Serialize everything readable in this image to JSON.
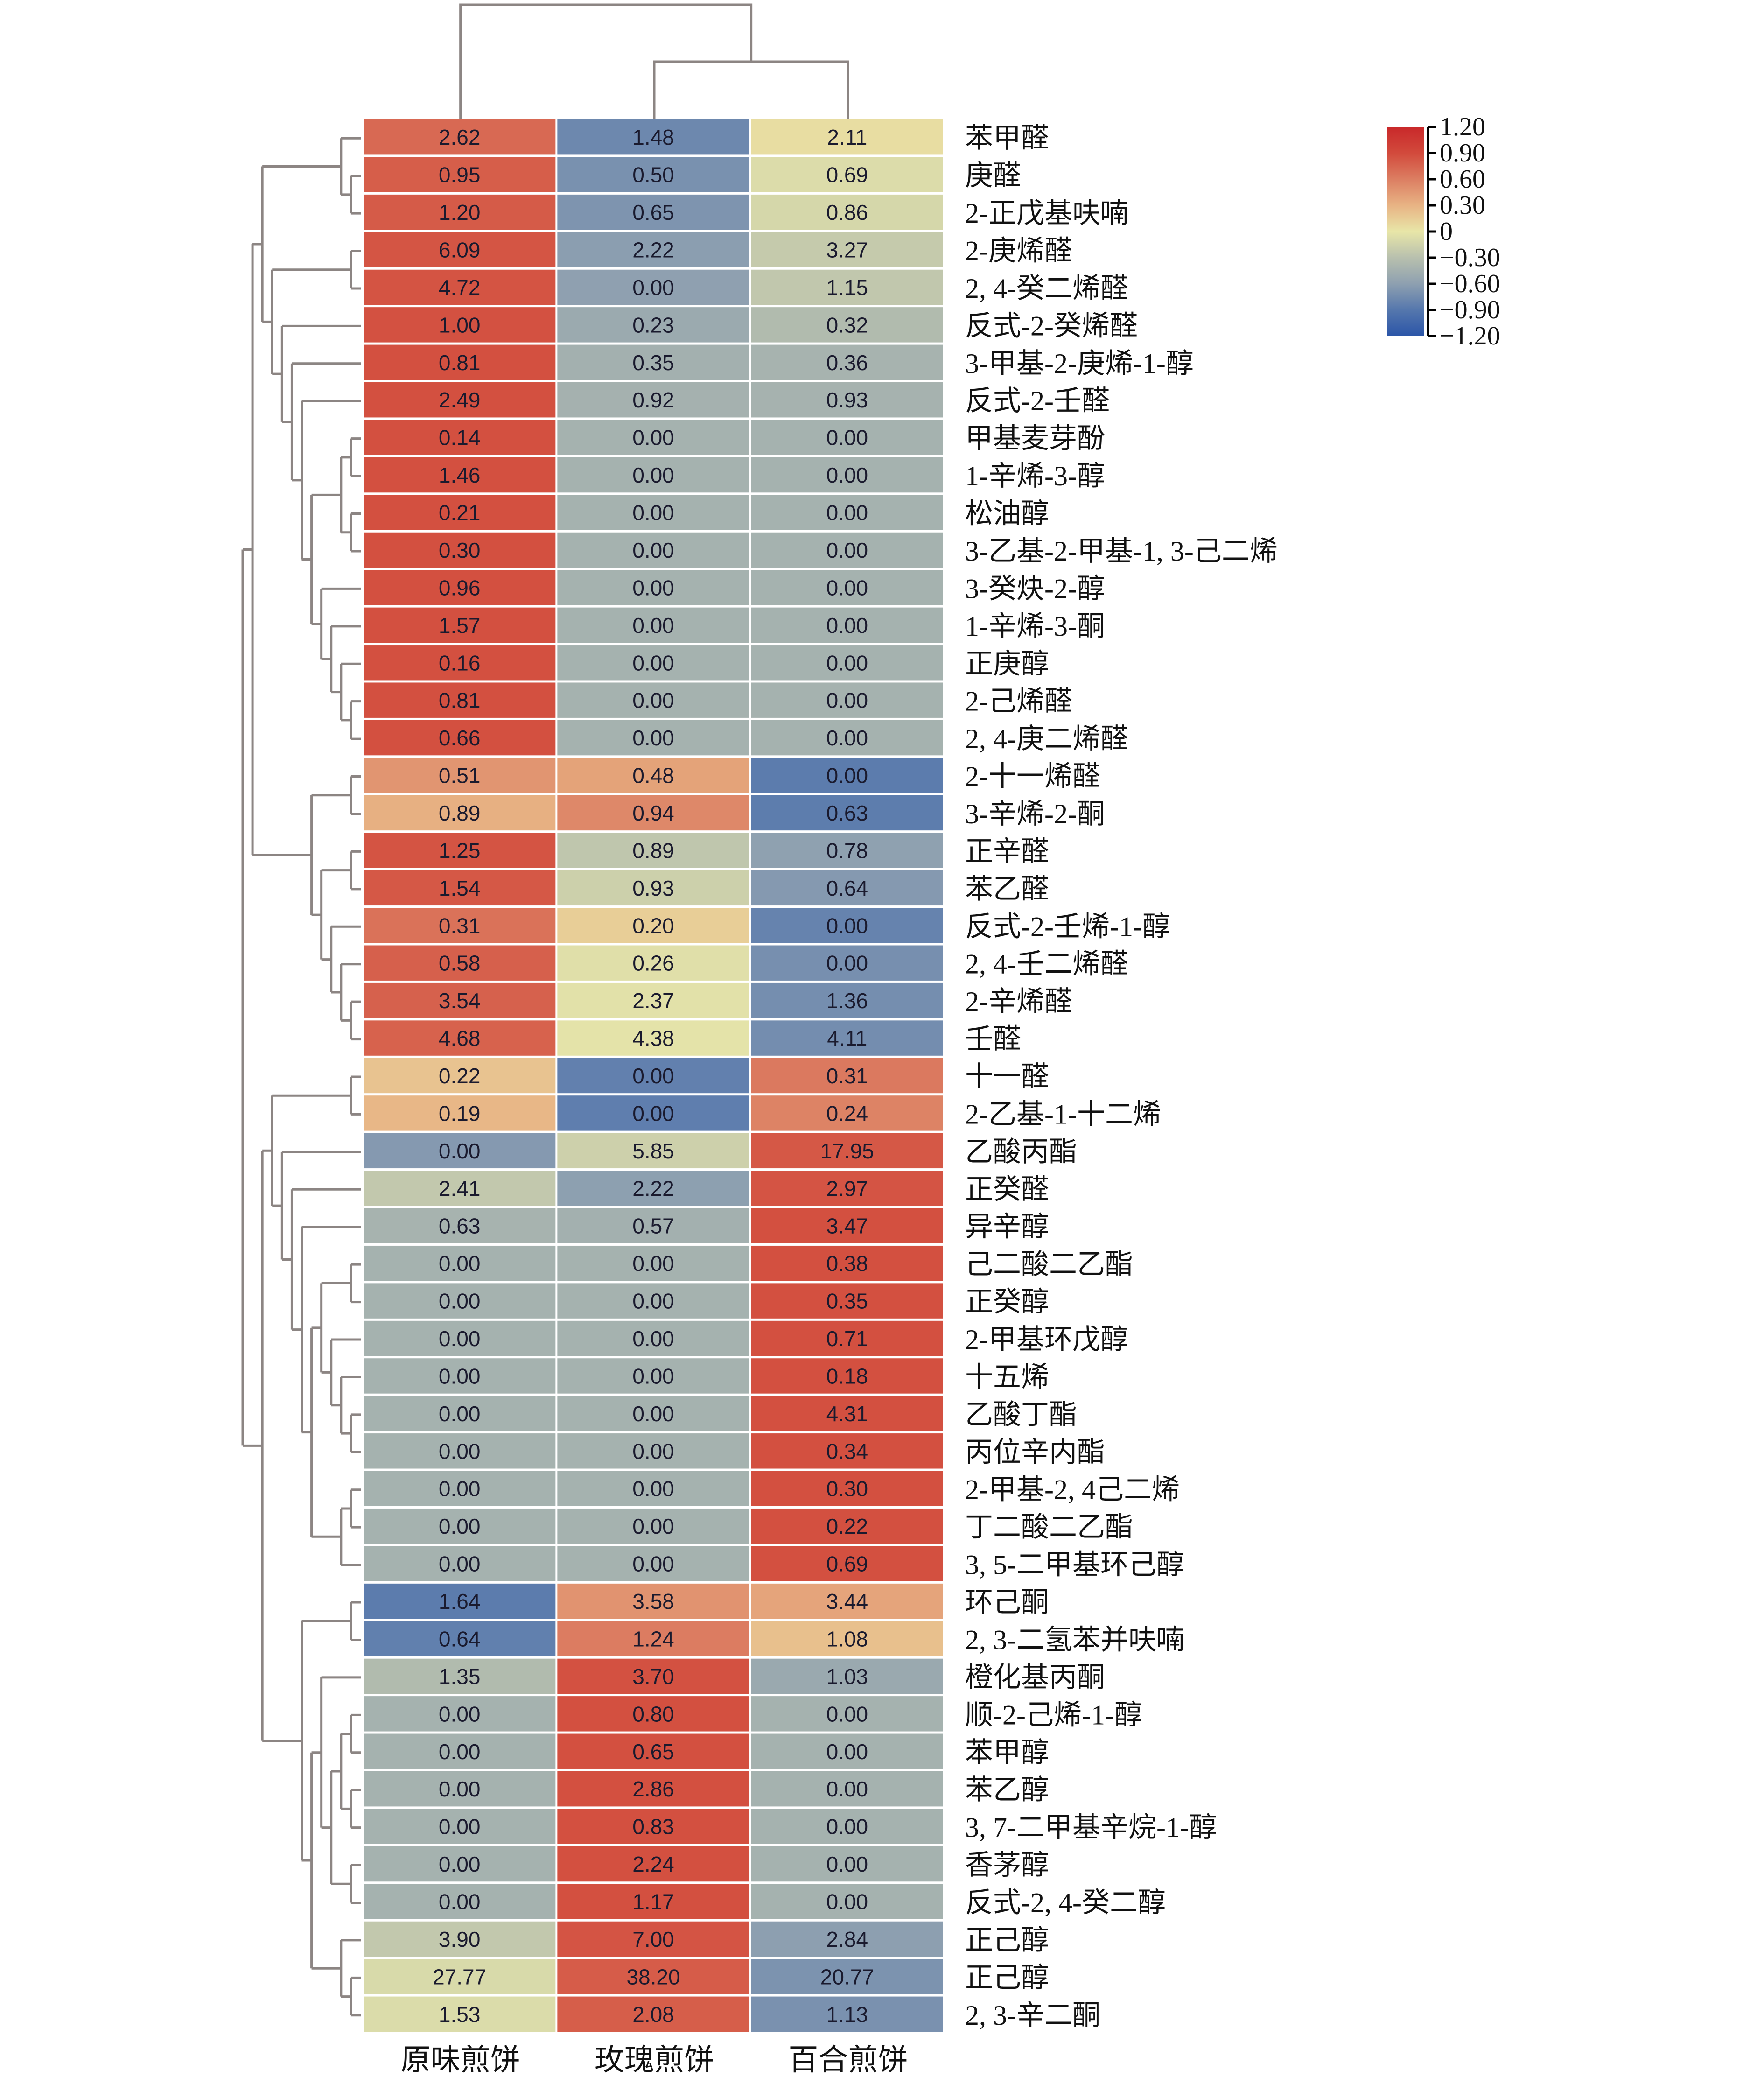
{
  "chart_data": {
    "type": "heatmap",
    "title": "",
    "xlabel": "",
    "ylabel": "",
    "columns": [
      "原味煎饼",
      "玫瑰煎饼",
      "百合煎饼"
    ],
    "rows": [
      {
        "name": "苯甲醛",
        "values": [
          "2.62",
          "1.48",
          "2.11"
        ]
      },
      {
        "name": "庚醛",
        "values": [
          "0.95",
          "0.50",
          "0.69"
        ]
      },
      {
        "name": "2-正戊基呋喃",
        "values": [
          "1.20",
          "0.65",
          "0.86"
        ]
      },
      {
        "name": "2-庚烯醛",
        "values": [
          "6.09",
          "2.22",
          "3.27"
        ]
      },
      {
        "name": "2, 4-癸二烯醛",
        "values": [
          "4.72",
          "0.00",
          "1.15"
        ]
      },
      {
        "name": "反式-2-癸烯醛",
        "values": [
          "1.00",
          "0.23",
          "0.32"
        ]
      },
      {
        "name": "3-甲基-2-庚烯-1-醇",
        "values": [
          "0.81",
          "0.35",
          "0.36"
        ]
      },
      {
        "name": "反式-2-壬醛",
        "values": [
          "2.49",
          "0.92",
          "0.93"
        ]
      },
      {
        "name": "甲基麦芽酚",
        "values": [
          "0.14",
          "0.00",
          "0.00"
        ]
      },
      {
        "name": "1-辛烯-3-醇",
        "values": [
          "1.46",
          "0.00",
          "0.00"
        ]
      },
      {
        "name": "松油醇",
        "values": [
          "0.21",
          "0.00",
          "0.00"
        ]
      },
      {
        "name": "3-乙基-2-甲基-1, 3-己二烯",
        "values": [
          "0.30",
          "0.00",
          "0.00"
        ]
      },
      {
        "name": "3-癸炔-2-醇",
        "values": [
          "0.96",
          "0.00",
          "0.00"
        ]
      },
      {
        "name": "1-辛烯-3-酮",
        "values": [
          "1.57",
          "0.00",
          "0.00"
        ]
      },
      {
        "name": "正庚醇",
        "values": [
          "0.16",
          "0.00",
          "0.00"
        ]
      },
      {
        "name": "2-己烯醛",
        "values": [
          "0.81",
          "0.00",
          "0.00"
        ]
      },
      {
        "name": "2, 4-庚二烯醛",
        "values": [
          "0.66",
          "0.00",
          "0.00"
        ]
      },
      {
        "name": "2-十一烯醛",
        "values": [
          "0.51",
          "0.48",
          "0.00"
        ]
      },
      {
        "name": "3-辛烯-2-酮",
        "values": [
          "0.89",
          "0.94",
          "0.63"
        ]
      },
      {
        "name": "正辛醛",
        "values": [
          "1.25",
          "0.89",
          "0.78"
        ]
      },
      {
        "name": "苯乙醛",
        "values": [
          "1.54",
          "0.93",
          "0.64"
        ]
      },
      {
        "name": "反式-2-壬烯-1-醇",
        "values": [
          "0.31",
          "0.20",
          "0.00"
        ]
      },
      {
        "name": "2, 4-壬二烯醛",
        "values": [
          "0.58",
          "0.26",
          "0.00"
        ]
      },
      {
        "name": "2-辛烯醛",
        "values": [
          "3.54",
          "2.37",
          "1.36"
        ]
      },
      {
        "name": "壬醛",
        "values": [
          "4.68",
          "4.38",
          "4.11"
        ]
      },
      {
        "name": "十一醛",
        "values": [
          "0.22",
          "0.00",
          "0.31"
        ]
      },
      {
        "name": "2-乙基-1-十二烯",
        "values": [
          "0.19",
          "0.00",
          "0.24"
        ]
      },
      {
        "name": "乙酸丙酯",
        "values": [
          "0.00",
          "5.85",
          "17.95"
        ]
      },
      {
        "name": "正癸醛",
        "values": [
          "2.41",
          "2.22",
          "2.97"
        ]
      },
      {
        "name": "异辛醇",
        "values": [
          "0.63",
          "0.57",
          "3.47"
        ]
      },
      {
        "name": "己二酸二乙酯",
        "values": [
          "0.00",
          "0.00",
          "0.38"
        ]
      },
      {
        "name": "正癸醇",
        "values": [
          "0.00",
          "0.00",
          "0.35"
        ]
      },
      {
        "name": "2-甲基环戊醇",
        "values": [
          "0.00",
          "0.00",
          "0.71"
        ]
      },
      {
        "name": "十五烯",
        "values": [
          "0.00",
          "0.00",
          "0.18"
        ]
      },
      {
        "name": "乙酸丁酯",
        "values": [
          "0.00",
          "0.00",
          "4.31"
        ]
      },
      {
        "name": "丙位辛内酯",
        "values": [
          "0.00",
          "0.00",
          "0.34"
        ]
      },
      {
        "name": "2-甲基-2, 4己二烯",
        "values": [
          "0.00",
          "0.00",
          "0.30"
        ]
      },
      {
        "name": "丁二酸二乙酯",
        "values": [
          "0.00",
          "0.00",
          "0.22"
        ]
      },
      {
        "name": "3, 5-二甲基环己醇",
        "values": [
          "0.00",
          "0.00",
          "0.69"
        ]
      },
      {
        "name": "环己酮",
        "values": [
          "1.64",
          "3.58",
          "3.44"
        ]
      },
      {
        "name": "2, 3-二氢苯并呋喃",
        "values": [
          "0.64",
          "1.24",
          "1.08"
        ]
      },
      {
        "name": "橙化基丙酮",
        "values": [
          "1.35",
          "3.70",
          "1.03"
        ]
      },
      {
        "name": "顺-2-己烯-1-醇",
        "values": [
          "0.00",
          "0.80",
          "0.00"
        ]
      },
      {
        "name": "苯甲醇",
        "values": [
          "0.00",
          "0.65",
          "0.00"
        ]
      },
      {
        "name": "苯乙醇",
        "values": [
          "0.00",
          "2.86",
          "0.00"
        ]
      },
      {
        "name": "3, 7-二甲基辛烷-1-醇",
        "values": [
          "0.00",
          "0.83",
          "0.00"
        ]
      },
      {
        "name": "香茅醇",
        "values": [
          "0.00",
          "2.24",
          "0.00"
        ]
      },
      {
        "name": "反式-2, 4-癸二醇",
        "values": [
          "0.00",
          "1.17",
          "0.00"
        ]
      },
      {
        "name": "正己醇",
        "values": [
          "3.90",
          "7.00",
          "2.84"
        ]
      },
      {
        "name": "正己醇",
        "values": [
          "27.77",
          "38.20",
          "20.77"
        ]
      },
      {
        "name": "2, 3-辛二酮",
        "values": [
          "1.53",
          "2.08",
          "1.13"
        ]
      }
    ],
    "color_scale": {
      "type": "diverging",
      "range": [
        -1.2,
        1.2
      ],
      "ticks": [
        "1.20",
        "0.90",
        "0.60",
        "0.30",
        "0",
        "−0.30",
        "−0.60",
        "−0.90",
        "−1.20"
      ],
      "stops": [
        "#2b55a8",
        "#5577ad",
        "#8ea0b0",
        "#b8c0ae",
        "#e8e6a8",
        "#e8b384",
        "#dc7e62",
        "#d24a3c",
        "#c9282a"
      ],
      "legend_position": "top-right"
    },
    "column_dendrogram": "(原味煎饼,(玫瑰煎饼,百合煎饼))",
    "row_dendrogram": "((((0,(1,2)),((3,4),(5,(6,(7,(((8,9),(10,11)),(12,(13,(14,(15,16)))))))))),((17,18),((19,20),(21,(22,(23,24)))))),(((25,26),(27,(28,(29,(((30,31),(32,(33,(34,35)))),((36,37),38)))))),((39,40),((41,(((42,43),(44,45)),(46,47))),(48,(49,50))))))"
  },
  "colors": {
    "dendrogram": "#8c8583",
    "cell_separator": "#ffffff",
    "cell_text": "#1a1a2e"
  }
}
